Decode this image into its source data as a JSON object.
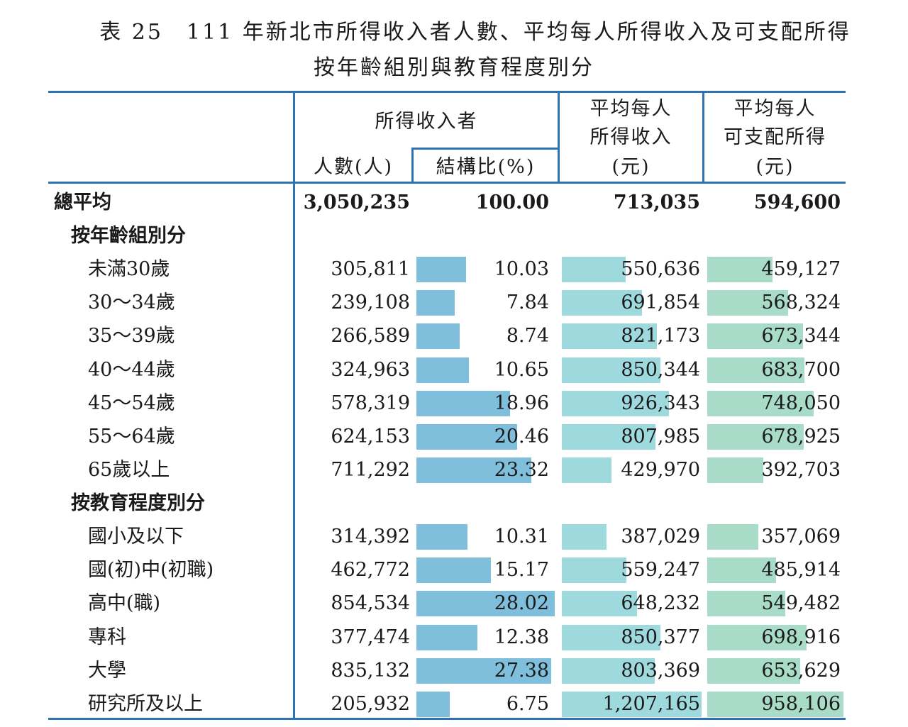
{
  "title_line1": "表 25　111 年新北市所得收入者人數、平均每人所得收入及可支配所得",
  "title_line2": "按年齡組別與教育程度別分",
  "headers": {
    "earners": "所得收入者",
    "count": "人數(人)",
    "ratio": "結構比(%)",
    "avg_income_l1": "平均每人",
    "avg_income_l2": "所得收入",
    "avg_income_l3": "(元)",
    "avg_disp_l1": "平均每人",
    "avg_disp_l2": "可支配所得",
    "avg_disp_l3": "(元)"
  },
  "total": {
    "label": "總平均",
    "count": "3,050,235",
    "ratio": "100.00",
    "income": "713,035",
    "disposable": "594,600"
  },
  "section_age": "按年齡組別分",
  "age_rows": [
    {
      "label": "未滿30歲",
      "count": "305,811",
      "ratio": "10.03",
      "income": "550,636",
      "disposable": "459,127",
      "ratio_v": 10.03,
      "income_v": 550636,
      "disp_v": 459127
    },
    {
      "label": "30～34歲",
      "count": "239,108",
      "ratio": "7.84",
      "income": "691,854",
      "disposable": "568,324",
      "ratio_v": 7.84,
      "income_v": 691854,
      "disp_v": 568324
    },
    {
      "label": "35～39歲",
      "count": "266,589",
      "ratio": "8.74",
      "income": "821,173",
      "disposable": "673,344",
      "ratio_v": 8.74,
      "income_v": 821173,
      "disp_v": 673344
    },
    {
      "label": "40～44歲",
      "count": "324,963",
      "ratio": "10.65",
      "income": "850,344",
      "disposable": "683,700",
      "ratio_v": 10.65,
      "income_v": 850344,
      "disp_v": 683700
    },
    {
      "label": "45～54歲",
      "count": "578,319",
      "ratio": "18.96",
      "income": "926,343",
      "disposable": "748,050",
      "ratio_v": 18.96,
      "income_v": 926343,
      "disp_v": 748050
    },
    {
      "label": "55～64歲",
      "count": "624,153",
      "ratio": "20.46",
      "income": "807,985",
      "disposable": "678,925",
      "ratio_v": 20.46,
      "income_v": 807985,
      "disp_v": 678925
    },
    {
      "label": "65歲以上",
      "count": "711,292",
      "ratio": "23.32",
      "income": "429,970",
      "disposable": "392,703",
      "ratio_v": 23.32,
      "income_v": 429970,
      "disp_v": 392703
    }
  ],
  "section_edu": "按教育程度別分",
  "edu_rows": [
    {
      "label": "國小及以下",
      "count": "314,392",
      "ratio": "10.31",
      "income": "387,029",
      "disposable": "357,069",
      "ratio_v": 10.31,
      "income_v": 387029,
      "disp_v": 357069
    },
    {
      "label": "國(初)中(初職)",
      "count": "462,772",
      "ratio": "15.17",
      "income": "559,247",
      "disposable": "485,914",
      "ratio_v": 15.17,
      "income_v": 559247,
      "disp_v": 485914
    },
    {
      "label": "高中(職)",
      "count": "854,534",
      "ratio": "28.02",
      "income": "648,232",
      "disposable": "549,482",
      "ratio_v": 28.02,
      "income_v": 648232,
      "disp_v": 549482
    },
    {
      "label": "專科",
      "count": "377,474",
      "ratio": "12.38",
      "income": "850,377",
      "disposable": "698,916",
      "ratio_v": 12.38,
      "income_v": 850377,
      "disp_v": 698916
    },
    {
      "label": "大學",
      "count": "835,132",
      "ratio": "27.38",
      "income": "803,369",
      "disposable": "653,629",
      "ratio_v": 27.38,
      "income_v": 803369,
      "disp_v": 653629
    },
    {
      "label": "研究所及以上",
      "count": "205,932",
      "ratio": "6.75",
      "income": "1,207,165",
      "disposable": "958,106",
      "ratio_v": 6.75,
      "income_v": 1207165,
      "disp_v": 958106
    }
  ],
  "colors": {
    "rule": "#2e74b5",
    "bar_ratio": "#7fbfdc",
    "bar_income": "#9ed9de",
    "bar_disposable": "#a8dcc8"
  }
}
